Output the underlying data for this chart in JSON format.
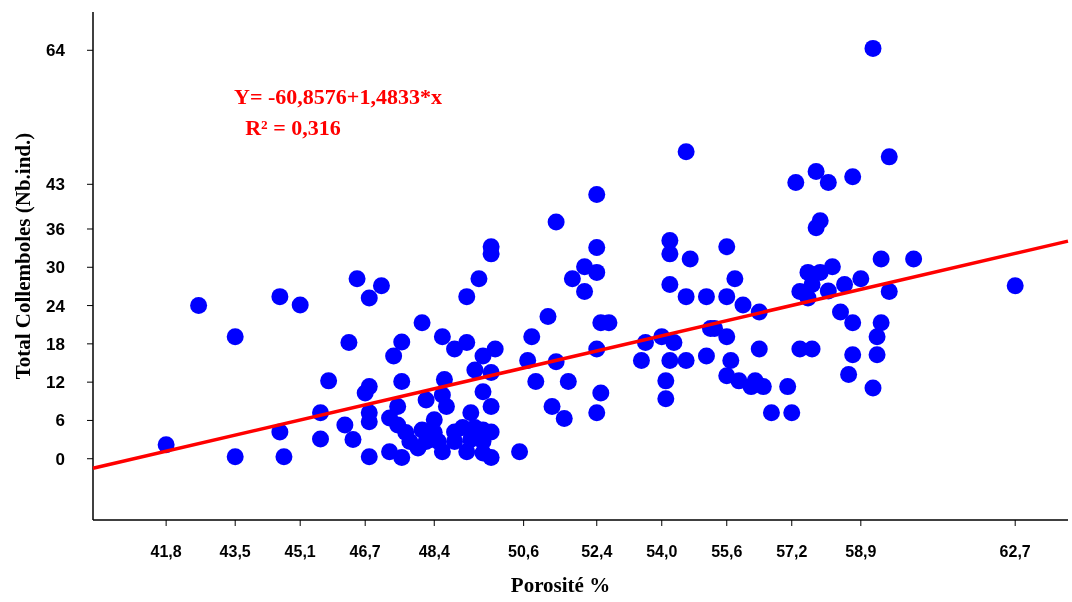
{
  "chart_data": {
    "type": "scatter",
    "xlabel": "Porosité %",
    "ylabel": "Total Collemboles (Nb.ind.)",
    "annotations": [
      "Y= -60,8576+1,4833*x",
      "R² = 0,316"
    ],
    "xlim": [
      40,
      64
    ],
    "ylim": [
      -9.6,
      70
    ],
    "xticks": [
      {
        "value": 41.8,
        "label": "41,8"
      },
      {
        "value": 43.5,
        "label": "43,5"
      },
      {
        "value": 45.1,
        "label": "45,1"
      },
      {
        "value": 46.7,
        "label": "46,7"
      },
      {
        "value": 48.4,
        "label": "48,4"
      },
      {
        "value": 50.6,
        "label": "50,6"
      },
      {
        "value": 52.4,
        "label": "52,4"
      },
      {
        "value": 54.0,
        "label": "54,0"
      },
      {
        "value": 55.6,
        "label": "55,6"
      },
      {
        "value": 57.2,
        "label": "57,2"
      },
      {
        "value": 58.9,
        "label": "58,9"
      },
      {
        "value": 62.7,
        "label": "62,7"
      }
    ],
    "yticks": [
      0,
      6,
      12,
      18,
      24,
      30,
      36,
      43,
      64
    ],
    "grid": false,
    "marker": "circle",
    "series": [
      {
        "color": "#0000ff",
        "x": [
          41.8,
          42.6,
          43.5,
          43.5,
          44.6,
          44.6,
          44.7,
          45.1,
          45.8,
          45.6,
          45.6,
          46.2,
          46.3,
          46.4,
          46.5,
          47.1,
          46.8,
          46.8,
          46.7,
          46.8,
          46.8,
          46.8,
          47.3,
          47.3,
          47.4,
          47.6,
          47.6,
          47.5,
          47.5,
          47.7,
          47.6,
          47.8,
          48.1,
          48.1,
          48.2,
          48.2,
          48.0,
          48.4,
          48.4,
          48.6,
          48.65,
          48.6,
          48.7,
          48.5,
          48.6,
          48.9,
          48.9,
          48.9,
          49.1,
          49.2,
          49.2,
          49.2,
          49.3,
          49.3,
          49.4,
          49.4,
          49.5,
          49.6,
          49.6,
          49.6,
          49.6,
          49.6,
          49.8,
          49.8,
          49.8,
          49.8,
          49.8,
          49.8,
          49.9,
          50.5,
          50.7,
          50.8,
          50.9,
          51.2,
          51.3,
          51.4,
          51.4,
          51.6,
          51.7,
          51.8,
          52.1,
          52.1,
          52.4,
          52.4,
          52.4,
          52.4,
          52.4,
          52.5,
          52.7,
          52.5,
          53.5,
          53.6,
          54.0,
          54.2,
          54.2,
          54.2,
          54.1,
          54.1,
          54.2,
          54.3,
          54.6,
          54.6,
          54.6,
          54.7,
          55.1,
          55.1,
          55.2,
          55.3,
          55.6,
          55.6,
          55.6,
          55.6,
          55.7,
          55.8,
          55.9,
          56.0,
          56.2,
          56.3,
          56.4,
          56.4,
          56.5,
          56.7,
          57.1,
          57.2,
          57.3,
          57.4,
          57.4,
          57.6,
          57.6,
          57.7,
          57.7,
          57.8,
          57.8,
          57.9,
          57.9,
          58.1,
          58.1,
          58.2,
          58.4,
          58.5,
          58.6,
          58.7,
          58.7,
          58.7,
          58.9,
          59.2,
          59.2,
          59.3,
          59.3,
          59.4,
          59.4,
          59.6,
          59.6,
          60.2,
          62.7
        ],
        "values": [
          2.2,
          24.0,
          19.1,
          0.3,
          25.4,
          4.2,
          0.3,
          24.1,
          12.2,
          7.2,
          3.1,
          5.3,
          18.2,
          3.0,
          28.2,
          27.1,
          25.2,
          11.3,
          10.3,
          7.2,
          5.8,
          0.3,
          6.4,
          1.1,
          16.1,
          18.3,
          12.1,
          8.2,
          5.3,
          4.1,
          0.2,
          2.7,
          21.3,
          4.5,
          9.2,
          2.7,
          1.7,
          6.1,
          4.1,
          19.1,
          12.4,
          10.0,
          8.2,
          2.7,
          1.1,
          17.2,
          4.2,
          2.7,
          4.9,
          1.1,
          25.4,
          18.2,
          3.0,
          7.2,
          4.9,
          13.9,
          28.2,
          16.1,
          10.5,
          4.5,
          2.7,
          0.9,
          33.2,
          32.1,
          13.5,
          8.2,
          4.2,
          0.2,
          17.2,
          1.1,
          15.4,
          19.1,
          12.1,
          22.3,
          8.2,
          37.1,
          15.2,
          6.3,
          12.1,
          28.2,
          30.1,
          26.2,
          41.4,
          33.1,
          29.2,
          17.2,
          7.2,
          10.3,
          21.3,
          21.3,
          15.4,
          18.2,
          19.1,
          34.2,
          32.1,
          27.3,
          12.2,
          9.4,
          15.4,
          18.2,
          48.1,
          25.4,
          15.4,
          31.3,
          25.4,
          16.1,
          20.4,
          20.4,
          33.2,
          25.4,
          13.0,
          19.1,
          15.4,
          28.2,
          12.2,
          24.1,
          11.3,
          12.2,
          23.0,
          17.2,
          11.3,
          7.2,
          11.3,
          7.2,
          43.3,
          26.2,
          17.2,
          25.2,
          29.2,
          27.3,
          17.2,
          45.0,
          36.2,
          37.3,
          29.2,
          43.3,
          26.3,
          30.1,
          23.0,
          27.3,
          13.2,
          44.2,
          21.3,
          16.3,
          28.2,
          64.3,
          11.1,
          19.1,
          16.3,
          31.3,
          21.3,
          47.3,
          26.2,
          31.3,
          27.1
        ]
      },
      {
        "type": "line",
        "color": "#ff0000",
        "x": [
          40,
          64
        ],
        "values": [
          -1.5,
          34.1
        ],
        "marker": "none"
      }
    ]
  }
}
